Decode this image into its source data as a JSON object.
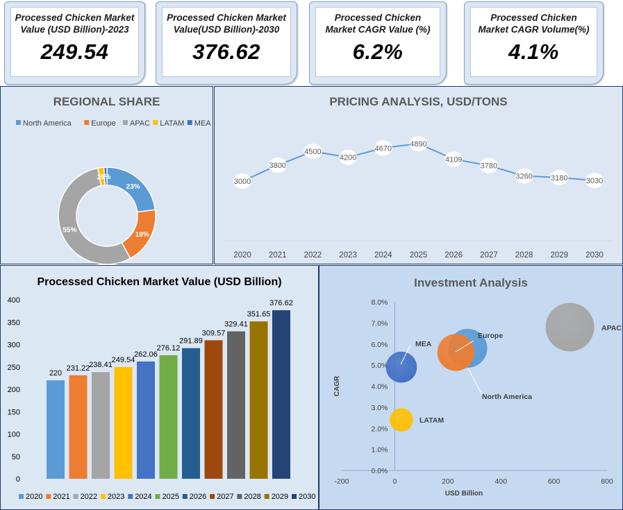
{
  "kpis": [
    {
      "line1": "Processed Chicken Market",
      "line2": "Value (USD Billion)-2023",
      "value": "249.54"
    },
    {
      "line1": "Processed Chicken Market",
      "line2": "Value(USD Billion)-2030",
      "value": "376.62"
    },
    {
      "line1": "Processed Chicken",
      "line2": "Market CAGR  Value (%)",
      "value": "6.2%"
    },
    {
      "line1": "Processed Chicken",
      "line2": "Market CAGR  Volume(%)",
      "value": "4.1%"
    }
  ],
  "chart_data": [
    {
      "type": "pie",
      "variant": "donut",
      "title": "REGIONAL SHARE",
      "legend_position": "top",
      "slices": [
        {
          "name": "North America",
          "value": 23,
          "label": "23%",
          "color": "#5b9bd5"
        },
        {
          "name": "Europe",
          "value": 19,
          "label": "19%",
          "color": "#ed7d31"
        },
        {
          "name": "APAC",
          "value": 55,
          "label": "55%",
          "color": "#a5a5a5"
        },
        {
          "name": "LATAM",
          "value": 2,
          "label": "2%",
          "color": "#ffc000"
        },
        {
          "name": "MEA",
          "value": 1,
          "label": "1%",
          "color": "#4472c4"
        }
      ]
    },
    {
      "type": "line",
      "title": "PRICING ANALYSIS, USD/TONS",
      "x": [
        "2020",
        "2021",
        "2022",
        "2023",
        "2024",
        "2025",
        "2026",
        "2027",
        "2028",
        "2029",
        "2030"
      ],
      "values": [
        3000,
        3800,
        4500,
        4200,
        4670,
        4890,
        4109,
        3780,
        3260,
        3180,
        3030
      ],
      "color": "#5b9bd5",
      "ylim": [
        0,
        6000
      ],
      "grid": false
    },
    {
      "type": "bar",
      "title": "Processed Chicken Market Value (USD Billion)",
      "categories": [
        "2020",
        "2021",
        "2022",
        "2023",
        "2024",
        "2025",
        "2026",
        "2027",
        "2028",
        "2029",
        "2030"
      ],
      "values": [
        220,
        231.22,
        238.41,
        249.54,
        262.06,
        276.12,
        291.89,
        309.57,
        329.41,
        351.65,
        376.62
      ],
      "value_labels": [
        "220",
        "231.22",
        "238.41",
        "249.54",
        "262.06",
        "276.12",
        "291.89",
        "309.57",
        "329.41",
        "351.65",
        "376.62"
      ],
      "colors": [
        "#5b9bd5",
        "#ed7d31",
        "#a5a5a5",
        "#ffc000",
        "#4472c4",
        "#70ad47",
        "#255e91",
        "#9e480e",
        "#636363",
        "#997300",
        "#264478"
      ],
      "ylim": [
        0,
        400
      ],
      "yticks": [
        "0",
        "50",
        "100",
        "150",
        "200",
        "250",
        "300",
        "350",
        "400"
      ],
      "legend_position": "bottom"
    },
    {
      "type": "scatter",
      "variant": "bubble",
      "title": "Investment Analysis",
      "xlabel": "USD Billion",
      "ylabel": "CAGR",
      "xlim": [
        -200,
        800
      ],
      "ylim": [
        0,
        8
      ],
      "xticks": [
        "-200",
        "0",
        "200",
        "400",
        "600",
        "800"
      ],
      "yticks": [
        "0.0%",
        "1.0%",
        "2.0%",
        "3.0%",
        "4.0%",
        "5.0%",
        "6.0%",
        "7.0%",
        "8.0%"
      ],
      "points": [
        {
          "name": "North America",
          "x": 275,
          "y": 5.8,
          "size": 1.0,
          "color": "#5b9bd5"
        },
        {
          "name": "Europe",
          "x": 230,
          "y": 5.6,
          "size": 0.95,
          "color": "#ed7d31"
        },
        {
          "name": "APAC",
          "x": 660,
          "y": 6.8,
          "size": 1.25,
          "color": "#a5a5a5"
        },
        {
          "name": "MEA",
          "x": 25,
          "y": 4.9,
          "size": 0.8,
          "color": "#4472c4"
        },
        {
          "name": "LATAM",
          "x": 25,
          "y": 2.4,
          "size": 0.6,
          "color": "#ffc000"
        }
      ]
    }
  ]
}
